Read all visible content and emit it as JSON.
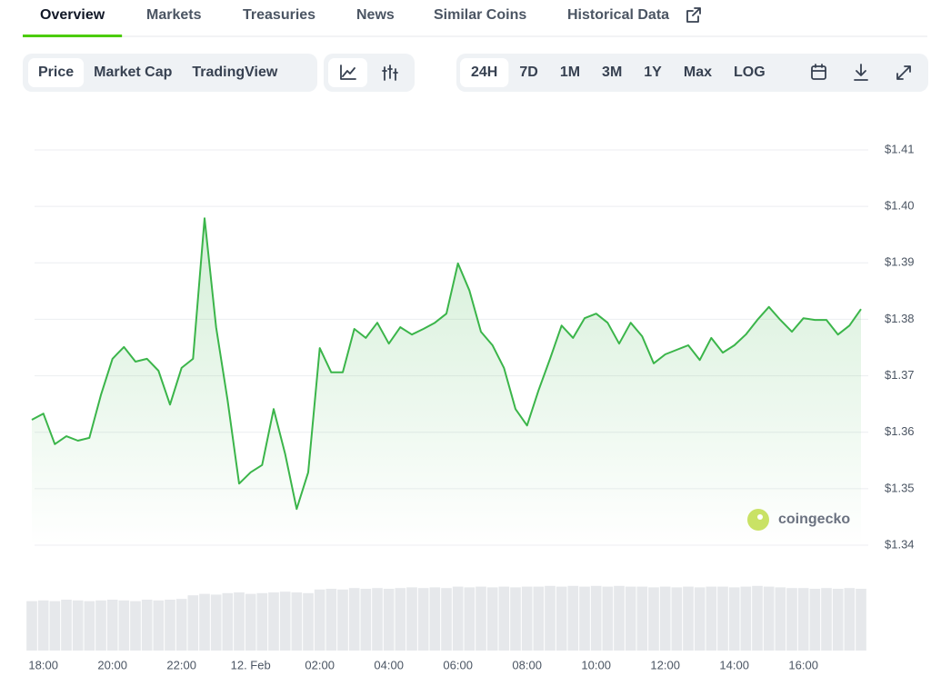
{
  "tabs": [
    "Overview",
    "Markets",
    "Treasuries",
    "News",
    "Similar Coins",
    "Historical Data"
  ],
  "active_tab": 0,
  "metric_buttons": [
    "Price",
    "Market Cap",
    "TradingView"
  ],
  "range_buttons": [
    "24H",
    "7D",
    "1M",
    "3M",
    "1Y",
    "Max",
    "LOG"
  ],
  "watermark": "coingecko",
  "chart_data": {
    "type": "line",
    "categories": [
      null,
      "18:00",
      null,
      null,
      null,
      null,
      null,
      "20:00",
      null,
      null,
      null,
      null,
      null,
      "22:00",
      null,
      null,
      null,
      null,
      null,
      "12. Feb",
      null,
      null,
      null,
      null,
      null,
      "02:00",
      null,
      null,
      null,
      null,
      null,
      "04:00",
      null,
      null,
      null,
      null,
      null,
      "06:00",
      null,
      null,
      null,
      null,
      null,
      "08:00",
      null,
      null,
      null,
      null,
      null,
      "10:00",
      null,
      null,
      null,
      null,
      null,
      "12:00",
      null,
      null,
      null,
      null,
      null,
      "14:00",
      null,
      null,
      null,
      null,
      null,
      "16:00",
      null,
      null,
      null,
      null,
      null
    ],
    "series": [
      {
        "name": "Price",
        "color": "#3bb54a",
        "values": [
          1.3622,
          1.3633,
          1.3579,
          1.3593,
          1.3585,
          1.359,
          1.3666,
          1.373,
          1.3751,
          1.3725,
          1.373,
          1.3709,
          1.3649,
          1.3714,
          1.373,
          1.3979,
          1.3786,
          1.3657,
          1.3509,
          1.3529,
          1.3542,
          1.3641,
          1.3561,
          1.3464,
          1.3529,
          1.3749,
          1.3706,
          1.3706,
          1.3783,
          1.3767,
          1.3794,
          1.3757,
          1.3786,
          1.3773,
          1.3783,
          1.3794,
          1.381,
          1.3899,
          1.3851,
          1.3778,
          1.3754,
          1.3714,
          1.3641,
          1.3612,
          1.3674,
          1.373,
          1.3789,
          1.3767,
          1.3802,
          1.381,
          1.3794,
          1.3757,
          1.3794,
          1.377,
          1.3722,
          1.3738,
          1.3746,
          1.3754,
          1.3728,
          1.3767,
          1.3741,
          1.3754,
          1.3773,
          1.3799,
          1.3822,
          1.3799,
          1.3778,
          1.3802,
          1.3799,
          1.3799,
          1.3773,
          1.3789,
          1.3818
        ]
      }
    ],
    "volume": {
      "color": "#e6e8eb",
      "ylim": [
        0,
        100
      ],
      "values": [
        68,
        69,
        68,
        70,
        69,
        68,
        69,
        70,
        69,
        68,
        70,
        69,
        70,
        71,
        76,
        78,
        77,
        79,
        80,
        78,
        79,
        80,
        81,
        80,
        79,
        84,
        85,
        84,
        86,
        85,
        86,
        85,
        86,
        87,
        86,
        87,
        86,
        88,
        87,
        88,
        87,
        88,
        87,
        88,
        88,
        89,
        88,
        89,
        88,
        89,
        88,
        89,
        88,
        88,
        87,
        88,
        87,
        88,
        87,
        88,
        88,
        87,
        88,
        89,
        88,
        87,
        86,
        86,
        85,
        86,
        85,
        86,
        85
      ]
    },
    "ylim": [
      1.34,
      1.41
    ],
    "yticks": [
      {
        "value": 1.34,
        "label": "$1.34"
      },
      {
        "value": 1.35,
        "label": "$1.35"
      },
      {
        "value": 1.36,
        "label": "$1.36"
      },
      {
        "value": 1.37,
        "label": "$1.37"
      },
      {
        "value": 1.38,
        "label": "$1.38"
      },
      {
        "value": 1.39,
        "label": "$1.39"
      },
      {
        "value": 1.4,
        "label": "$1.40"
      },
      {
        "value": 1.41,
        "label": "$1.41"
      }
    ],
    "grid": true
  }
}
